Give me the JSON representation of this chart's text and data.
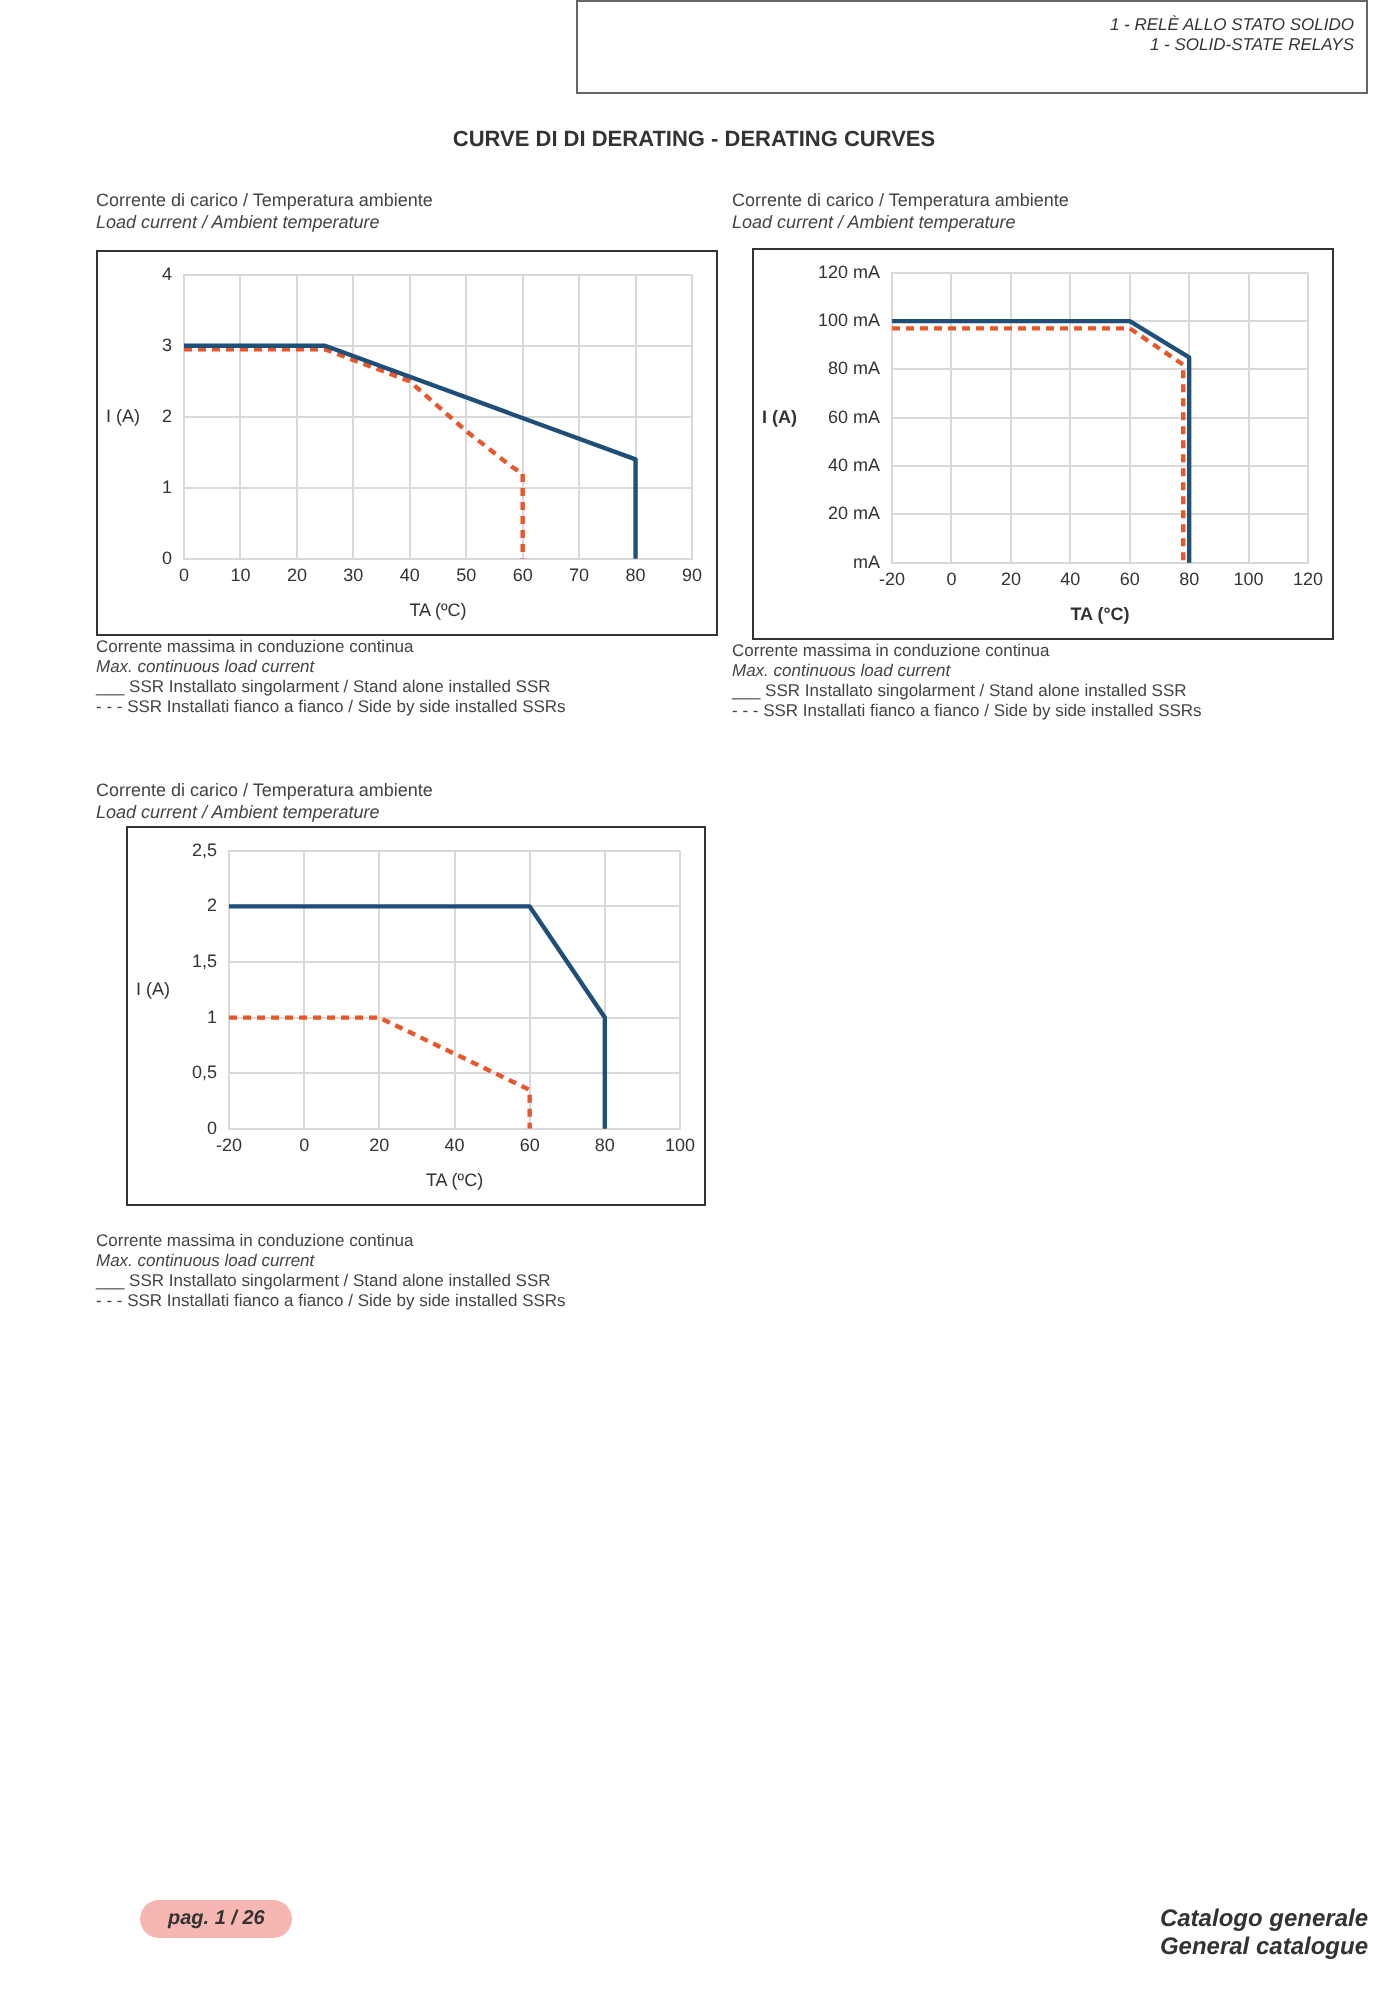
{
  "chart_data": [
    {
      "type": "line",
      "title": "CURVE DI DI DERATING - DERATING CURVES",
      "subtitle": "Corrente di carico / Temperatura ambiente\nLoad current / Ambient temperature",
      "xlabel": "TA (ºC)",
      "ylabel": "I (A)",
      "xlim": [
        0,
        90
      ],
      "xticks": [
        0,
        10,
        20,
        30,
        40,
        50,
        60,
        70,
        80,
        90
      ],
      "ylim": [
        0,
        4
      ],
      "yticks": [
        0,
        1,
        2,
        3,
        4
      ],
      "grid": true,
      "marker": "none",
      "series": [
        {
          "color": "#1f4e79",
          "line_style": "solid",
          "x": [
            0,
            25,
            80,
            80
          ],
          "values": [
            3,
            3,
            1.4,
            0
          ]
        },
        {
          "color": "#e8572a",
          "line_style": "dashed",
          "x": [
            0,
            25,
            40,
            50,
            58,
            60,
            60
          ],
          "values": [
            2.95,
            2.95,
            2.5,
            1.8,
            1.3,
            1.2,
            0
          ]
        }
      ],
      "annotations": [
        "1 - RELÈ ALLO STATO SOLIDO\n1 - SOLID-STATE RELAYS",
        "Corrente massima in conduzione continua",
        "Max. continuous load current",
        "___ SSR Installato singolarment / Stand alone installed SSR",
        "- - - SSR Installati fianco a fianco / Side by side installed SSRs",
        "pag. 1 / 26",
        "Catalogo generale\nGeneral catalogue"
      ]
    },
    {
      "type": "line",
      "subtitle": "Corrente di carico / Temperatura ambiente\nLoad current / Ambient temperature",
      "xlabel": "TA (°C)",
      "ylabel": "I (A)",
      "xlim": [
        -20,
        120
      ],
      "xticks": [
        -20,
        0,
        20,
        40,
        60,
        80,
        100,
        120
      ],
      "ylim": [
        0,
        120
      ],
      "yticks": [
        {
          "value": 0,
          "label": "mA"
        },
        {
          "value": 20,
          "label": "20 mA"
        },
        {
          "value": 40,
          "label": "40 mA"
        },
        {
          "value": 60,
          "label": "60 mA"
        },
        {
          "value": 80,
          "label": "80 mA"
        },
        {
          "value": 100,
          "label": "100 mA"
        },
        {
          "value": 120,
          "label": "120 mA"
        }
      ],
      "grid": true,
      "marker": "none",
      "series": [
        {
          "color": "#1f4e79",
          "line_style": "solid",
          "x": [
            -20,
            60,
            80,
            80
          ],
          "values": [
            100,
            100,
            85,
            0
          ]
        },
        {
          "color": "#e8572a",
          "line_style": "dashed",
          "x": [
            -20,
            60,
            78,
            78
          ],
          "values": [
            97,
            97,
            82,
            0
          ]
        }
      ],
      "annotations": [
        "Corrente massima in conduzione continua",
        "Max. continuous load current",
        "___ SSR Installato singolarment / Stand alone installed SSR",
        "- - - SSR Installati fianco a fianco / Side by side installed SSRs"
      ]
    },
    {
      "type": "line",
      "subtitle": "Corrente di carico / Temperatura ambiente\nLoad current / Ambient temperature",
      "xlabel": "TA (ºC)",
      "ylabel": "I (A)",
      "xlim": [
        -20,
        100
      ],
      "xticks": [
        -20,
        0,
        20,
        40,
        60,
        80,
        100
      ],
      "ylim": [
        0,
        2.5
      ],
      "yticks": [
        0,
        {
          "value": 0.5,
          "label": "0,5"
        },
        1,
        {
          "value": 1.5,
          "label": "1,5"
        },
        2,
        {
          "value": 2.5,
          "label": "2,5"
        }
      ],
      "grid": true,
      "marker": "none",
      "series": [
        {
          "color": "#1f4e79",
          "line_style": "solid",
          "x": [
            -20,
            60,
            80,
            80
          ],
          "values": [
            2,
            2,
            1,
            0
          ]
        },
        {
          "color": "#e8572a",
          "line_style": "dashed",
          "x": [
            -20,
            20,
            60,
            60
          ],
          "values": [
            1,
            1,
            0.35,
            0
          ]
        }
      ],
      "annotations": [
        "Corrente massima in conduzione continua",
        "Max. continuous load current",
        "___ SSR Installato singolarment / Stand alone installed SSR",
        "- - - SSR Installati fianco a fianco / Side by side installed SSRs"
      ]
    }
  ]
}
